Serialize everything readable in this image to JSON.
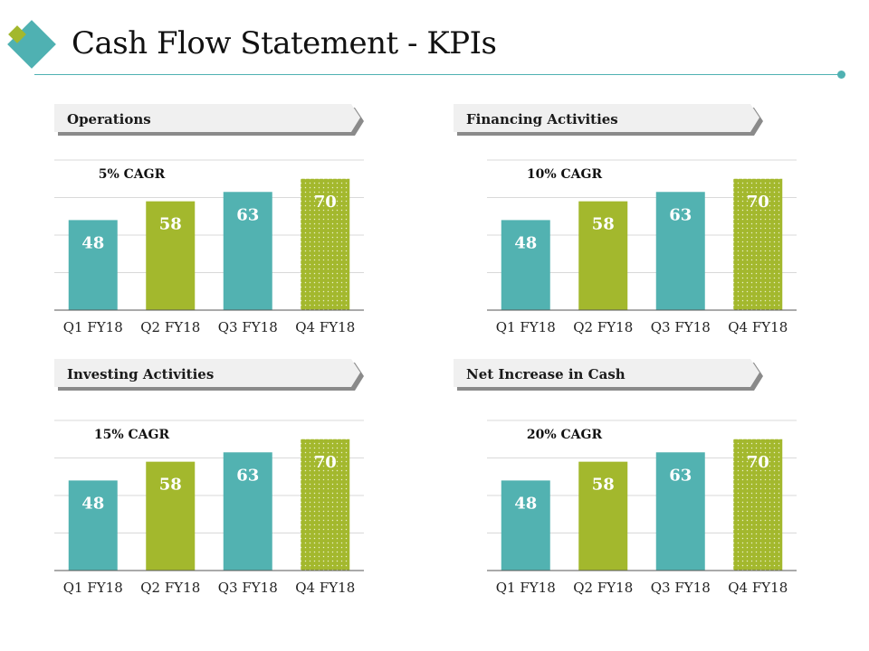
{
  "slide": {
    "title": "Cash Flow Statement - KPIs"
  },
  "colors": {
    "teal": "#52b2b1",
    "green": "#a3b82d",
    "accent_line": "#4fb1b2",
    "header_bg": "#f0f0f0",
    "header_shadow": "#8a8a8a"
  },
  "icons": {
    "logo": "diamond-logo-icon"
  },
  "panels": [
    {
      "header": "Operations"
    },
    {
      "header": "Financing Activities"
    },
    {
      "header": "Investing Activities"
    },
    {
      "header": "Net Increase in Cash"
    }
  ],
  "chart_data": [
    {
      "type": "bar",
      "title": "5% CAGR",
      "categories": [
        "Q1 FY18",
        "Q2 FY18",
        "Q3 FY18",
        "Q4 FY18"
      ],
      "values": [
        48,
        58,
        63,
        70
      ],
      "data_labels": [
        "48",
        "58",
        "63",
        "70"
      ],
      "bar_styles": [
        "teal",
        "green",
        "teal",
        "green-dotted"
      ],
      "xlabel": "",
      "ylabel": "",
      "ylim": [
        0,
        80
      ],
      "grid": true,
      "legend": "none"
    },
    {
      "type": "bar",
      "title": "10% CAGR",
      "categories": [
        "Q1 FY18",
        "Q2 FY18",
        "Q3 FY18",
        "Q4 FY18"
      ],
      "values": [
        48,
        58,
        63,
        70
      ],
      "data_labels": [
        "48",
        "58",
        "63",
        "70"
      ],
      "bar_styles": [
        "teal",
        "green",
        "teal",
        "green-dotted"
      ],
      "xlabel": "",
      "ylabel": "",
      "ylim": [
        0,
        80
      ],
      "grid": true,
      "legend": "none"
    },
    {
      "type": "bar",
      "title": "15% CAGR",
      "categories": [
        "Q1 FY18",
        "Q2 FY18",
        "Q3 FY18",
        "Q4 FY18"
      ],
      "values": [
        48,
        58,
        63,
        70
      ],
      "data_labels": [
        "48",
        "58",
        "63",
        "70"
      ],
      "bar_styles": [
        "teal",
        "green",
        "teal",
        "green-dotted"
      ],
      "xlabel": "",
      "ylabel": "",
      "ylim": [
        0,
        80
      ],
      "grid": true,
      "legend": "none"
    },
    {
      "type": "bar",
      "title": "20% CAGR",
      "categories": [
        "Q1 FY18",
        "Q2 FY18",
        "Q3 FY18",
        "Q4 FY18"
      ],
      "values": [
        48,
        58,
        63,
        70
      ],
      "data_labels": [
        "48",
        "58",
        "63",
        "70"
      ],
      "bar_styles": [
        "teal",
        "green",
        "teal",
        "green-dotted"
      ],
      "xlabel": "",
      "ylabel": "",
      "ylim": [
        0,
        80
      ],
      "grid": true,
      "legend": "none"
    }
  ]
}
